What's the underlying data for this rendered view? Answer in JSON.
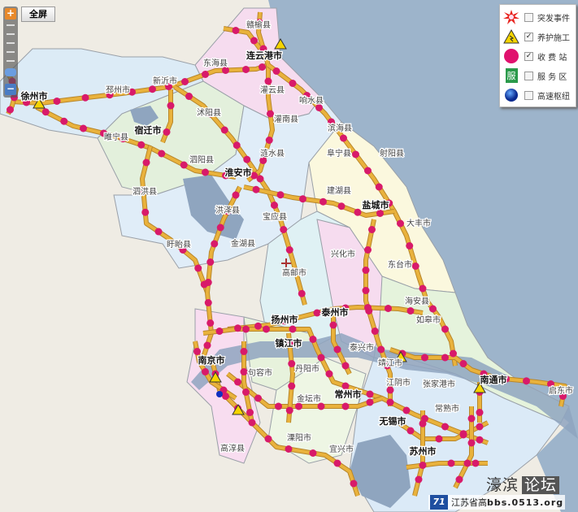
{
  "controls": {
    "fullscreen_label": "全屏",
    "zoom_in": "+",
    "zoom_out": "−"
  },
  "legend": [
    {
      "icon": "incident-burst-icon",
      "label": "突发事件",
      "checked": false
    },
    {
      "icon": "construction-warning-icon",
      "label": "养护施工",
      "checked": true
    },
    {
      "icon": "toll-station-dot-icon",
      "label": "收 费 站",
      "checked": true
    },
    {
      "icon": "service-area-icon",
      "label": "服 务 区",
      "checked": false,
      "glyph": "服"
    },
    {
      "icon": "junction-blue-ball-icon",
      "label": "高速枢纽",
      "checked": false
    }
  ],
  "colors": {
    "road": "#e9b23c",
    "toll_station": "#d81a6a",
    "sea": "#9db4cb",
    "lake": "#8fa5bf",
    "background": "#efece4"
  },
  "cities": [
    "赣榆县",
    "连云港市",
    "东海县",
    "灌云县",
    "灌南县",
    "响水县",
    "新沂市",
    "邳州市",
    "徐州市",
    "睢宁县",
    "宿迁市",
    "沭阳县",
    "泗阳县",
    "涟水县",
    "淮安市",
    "泗洪县",
    "洪泽县",
    "金湖县",
    "盱眙县",
    "宝应县",
    "滨海县",
    "阜宁县",
    "射阳县",
    "建湖县",
    "盐城市",
    "大丰市",
    "兴化市",
    "东台市",
    "高邮市",
    "海安县",
    "如皋市",
    "泰州市",
    "扬州市",
    "镇江市",
    "南京市",
    "句容市",
    "丹阳市",
    "金坛市",
    "常州市",
    "泰兴市",
    "靖江市",
    "江阴市",
    "张家港市",
    "常熟市",
    "无锡市",
    "苏州市",
    "溧阳市",
    "宜兴市",
    "高淳县",
    "南通市",
    "启东市"
  ],
  "watermark": {
    "site": "濠滨",
    "forum": "论坛",
    "logo": "JSHG",
    "text1": "江苏省高",
    "text2": "bbs.0513.org"
  }
}
